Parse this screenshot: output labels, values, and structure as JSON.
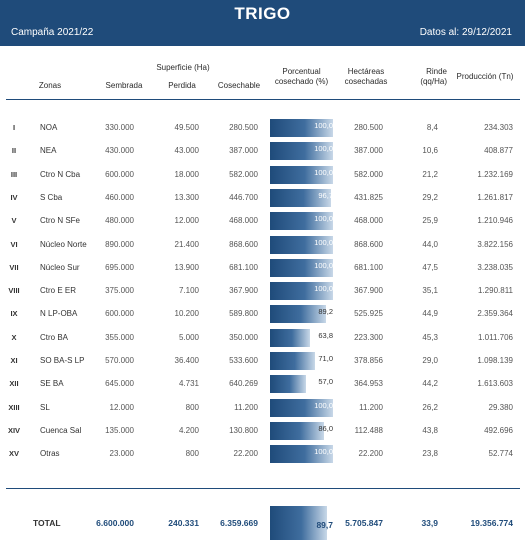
{
  "header": {
    "title": "TRIGO",
    "campaign": "Campaña 2021/22",
    "date": "Datos al: 29/12/2021"
  },
  "columns": {
    "zonas": "Zonas",
    "superficie_group": "Superficie (Ha)",
    "sembrada": "Sembrada",
    "perdida": "Perdida",
    "cosechable": "Cosechable",
    "porcentual_1": "Porcentual",
    "porcentual_2": "cosechado (%)",
    "hectareas_1": "Hectáreas",
    "hectareas_2": "cosechadas",
    "rinde_1": "Rinde",
    "rinde_2": "(qq/Ha)",
    "produccion": "Producción (Tn)"
  },
  "rows": [
    {
      "roman": "I",
      "zona": "NOA",
      "sembrada": "330.000",
      "perdida": "49.500",
      "cosechable": "280.500",
      "pct": "100,0",
      "pct_value": 100.0,
      "hectareas": "280.500",
      "rinde": "8,4",
      "produccion": "234.303"
    },
    {
      "roman": "II",
      "zona": "NEA",
      "sembrada": "430.000",
      "perdida": "43.000",
      "cosechable": "387.000",
      "pct": "100,0",
      "pct_value": 100.0,
      "hectareas": "387.000",
      "rinde": "10,6",
      "produccion": "408.877"
    },
    {
      "roman": "III",
      "zona": "Ctro N Cba",
      "sembrada": "600.000",
      "perdida": "18.000",
      "cosechable": "582.000",
      "pct": "100,0",
      "pct_value": 100.0,
      "hectareas": "582.000",
      "rinde": "21,2",
      "produccion": "1.232.169"
    },
    {
      "roman": "IV",
      "zona": "S Cba",
      "sembrada": "460.000",
      "perdida": "13.300",
      "cosechable": "446.700",
      "pct": "96,7",
      "pct_value": 96.7,
      "hectareas": "431.825",
      "rinde": "29,2",
      "produccion": "1.261.817"
    },
    {
      "roman": "V",
      "zona": "Ctro N SFe",
      "sembrada": "480.000",
      "perdida": "12.000",
      "cosechable": "468.000",
      "pct": "100,0",
      "pct_value": 100.0,
      "hectareas": "468.000",
      "rinde": "25,9",
      "produccion": "1.210.946"
    },
    {
      "roman": "VI",
      "zona": "Núcleo Norte",
      "sembrada": "890.000",
      "perdida": "21.400",
      "cosechable": "868.600",
      "pct": "100,0",
      "pct_value": 100.0,
      "hectareas": "868.600",
      "rinde": "44,0",
      "produccion": "3.822.156"
    },
    {
      "roman": "VII",
      "zona": "Núcleo Sur",
      "sembrada": "695.000",
      "perdida": "13.900",
      "cosechable": "681.100",
      "pct": "100,0",
      "pct_value": 100.0,
      "hectareas": "681.100",
      "rinde": "47,5",
      "produccion": "3.238.035"
    },
    {
      "roman": "VIII",
      "zona": "Ctro E ER",
      "sembrada": "375.000",
      "perdida": "7.100",
      "cosechable": "367.900",
      "pct": "100,0",
      "pct_value": 100.0,
      "hectareas": "367.900",
      "rinde": "35,1",
      "produccion": "1.290.811"
    },
    {
      "roman": "IX",
      "zona": "N LP-OBA",
      "sembrada": "600.000",
      "perdida": "10.200",
      "cosechable": "589.800",
      "pct": "89,2",
      "pct_value": 89.2,
      "hectareas": "525.925",
      "rinde": "44,9",
      "produccion": "2.359.364"
    },
    {
      "roman": "X",
      "zona": "Ctro BA",
      "sembrada": "355.000",
      "perdida": "5.000",
      "cosechable": "350.000",
      "pct": "63,8",
      "pct_value": 63.8,
      "hectareas": "223.300",
      "rinde": "45,3",
      "produccion": "1.011.706"
    },
    {
      "roman": "XI",
      "zona": "SO BA-S LP",
      "sembrada": "570.000",
      "perdida": "36.400",
      "cosechable": "533.600",
      "pct": "71,0",
      "pct_value": 71.0,
      "hectareas": "378.856",
      "rinde": "29,0",
      "produccion": "1.098.139"
    },
    {
      "roman": "XII",
      "zona": "SE BA",
      "sembrada": "645.000",
      "perdida": "4.731",
      "cosechable": "640.269",
      "pct": "57,0",
      "pct_value": 57.0,
      "hectareas": "364.953",
      "rinde": "44,2",
      "produccion": "1.613.603"
    },
    {
      "roman": "XIII",
      "zona": "SL",
      "sembrada": "12.000",
      "perdida": "800",
      "cosechable": "11.200",
      "pct": "100,0",
      "pct_value": 100.0,
      "hectareas": "11.200",
      "rinde": "26,2",
      "produccion": "29.380"
    },
    {
      "roman": "XIV",
      "zona": "Cuenca Sal",
      "sembrada": "135.000",
      "perdida": "4.200",
      "cosechable": "130.800",
      "pct": "86,0",
      "pct_value": 86.0,
      "hectareas": "112.488",
      "rinde": "43,8",
      "produccion": "492.696"
    },
    {
      "roman": "XV",
      "zona": "Otras",
      "sembrada": "23.000",
      "perdida": "800",
      "cosechable": "22.200",
      "pct": "100,0",
      "pct_value": 100.0,
      "hectareas": "22.200",
      "rinde": "23,8",
      "produccion": "52.774"
    }
  ],
  "total": {
    "label": "TOTAL",
    "sembrada": "6.600.000",
    "perdida": "240.331",
    "cosechable": "6.359.669",
    "pct": "89,7",
    "pct_value": 89.7,
    "hectareas": "5.705.847",
    "rinde": "33,9",
    "produccion": "19.356.774"
  },
  "colors": {
    "header_bg": "#1f4b7a",
    "bar_dark": "#1f4b7a",
    "bar_light": "#c8d8e8"
  }
}
